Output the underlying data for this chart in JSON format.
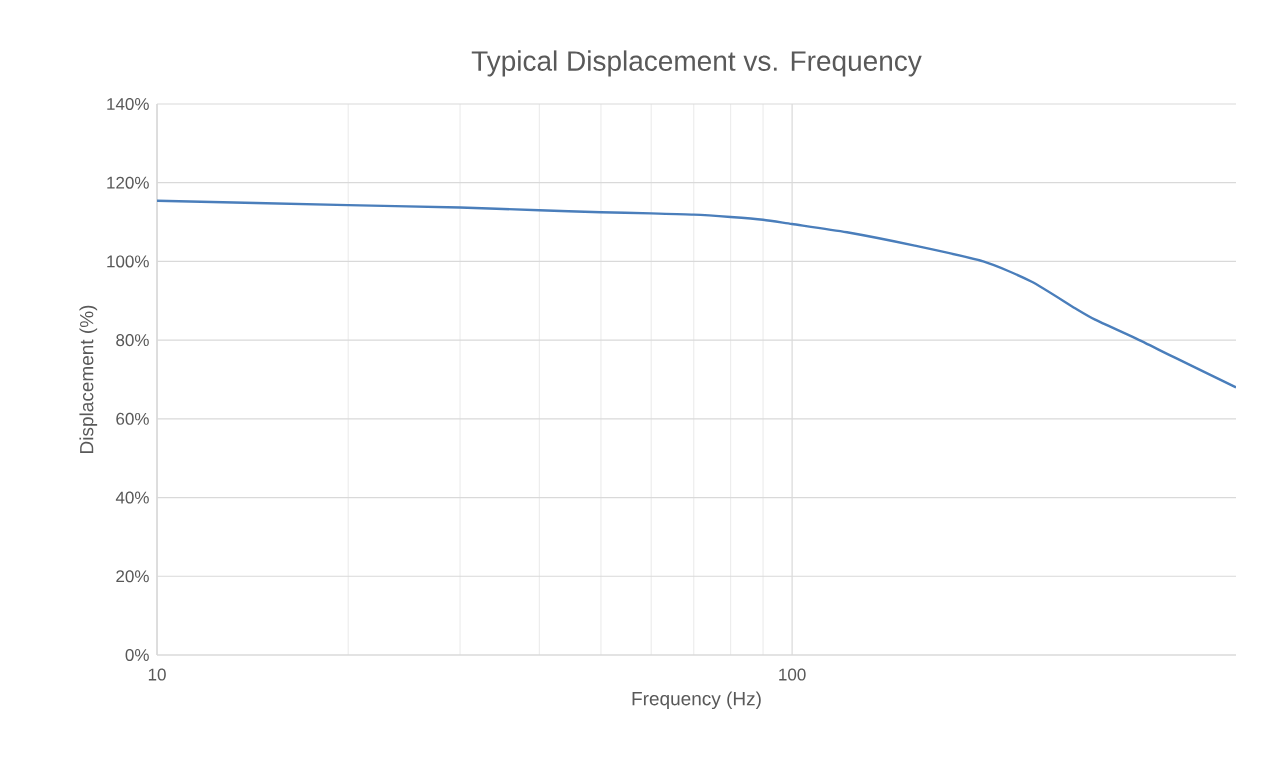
{
  "chart_data": {
    "type": "line",
    "title": "Typical Displacement vs. Frequency",
    "xlabel": "Frequency (Hz)",
    "ylabel": "Displacement (%)",
    "log": "x",
    "grid": true,
    "marker": "none",
    "xlim": [
      10,
      500
    ],
    "xticks": [
      10,
      100
    ],
    "ylim": [
      0,
      140
    ],
    "yticks": [
      {
        "value": 0,
        "label": "0%"
      },
      {
        "value": 20,
        "label": "20%"
      },
      {
        "value": 40,
        "label": "40%"
      },
      {
        "value": 60,
        "label": "60%"
      },
      {
        "value": 80,
        "label": "80%"
      },
      {
        "value": 100,
        "label": "100%"
      },
      {
        "value": 120,
        "label": "120%"
      },
      {
        "value": 140,
        "label": "140%"
      }
    ],
    "x": [
      10,
      20,
      30,
      40,
      50,
      60,
      70,
      80,
      90,
      100,
      122,
      156,
      200,
      238,
      279,
      300,
      347,
      400,
      500
    ],
    "series": [
      {
        "color": "#4a7ebb",
        "values": [
          115.4,
          114.3,
          113.7,
          113.0,
          112.5,
          112.2,
          111.9,
          111.3,
          110.6,
          109.5,
          107.4,
          104,
          100,
          94.9,
          88.1,
          85.2,
          80.5,
          75.6,
          68
        ]
      }
    ]
  }
}
